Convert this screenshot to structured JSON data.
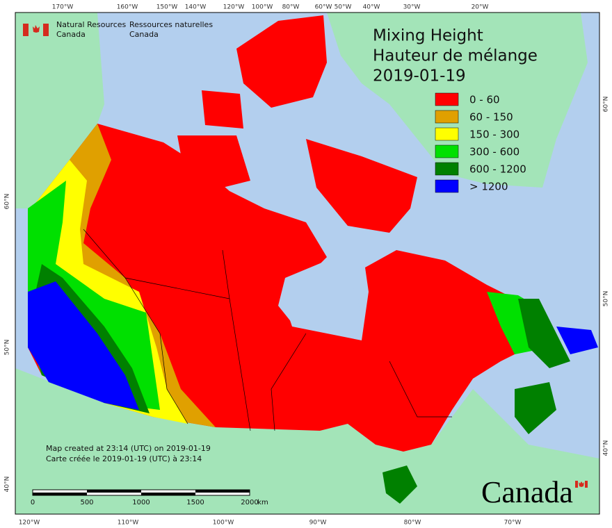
{
  "header": {
    "agency_en": [
      "Natural Resources",
      "Canada"
    ],
    "agency_fr": [
      "Ressources naturelles",
      "Canada"
    ]
  },
  "title": [
    "Mixing Height",
    "Hauteur de mélange",
    "2019-01-19"
  ],
  "legend": [
    {
      "label": "0 - 60",
      "color": "#ff0000"
    },
    {
      "label": "60 - 150",
      "color": "#e0a000"
    },
    {
      "label": "150 - 300",
      "color": "#ffff00"
    },
    {
      "label": "300 - 600",
      "color": "#00e000"
    },
    {
      "label": "600 - 1200",
      "color": "#008000"
    },
    {
      "label": "> 1200",
      "color": "#0000ff"
    }
  ],
  "graticule": {
    "top": [
      "170°W",
      "160°W",
      "150°W",
      "140°W",
      "120°W",
      "100°W",
      "80°W",
      "60°W",
      "50°W",
      "40°W",
      "30°W",
      "20°W"
    ],
    "bottom": [
      "120°W",
      "110°W",
      "100°W",
      "90°W",
      "80°W",
      "70°W"
    ],
    "left": [
      "60°N",
      "50°N",
      "40°N"
    ],
    "right": [
      "60°N",
      "50°N",
      "40°N"
    ]
  },
  "credits": [
    "Map created at 23:14 (UTC) on 2019-01-19",
    "Carte créée le 2019-01-19 (UTC) à 23:14"
  ],
  "scale_bar": {
    "labels": [
      "0",
      "500",
      "1000",
      "1500",
      "2000"
    ],
    "unit": "km"
  },
  "wordmark": "Canada"
}
